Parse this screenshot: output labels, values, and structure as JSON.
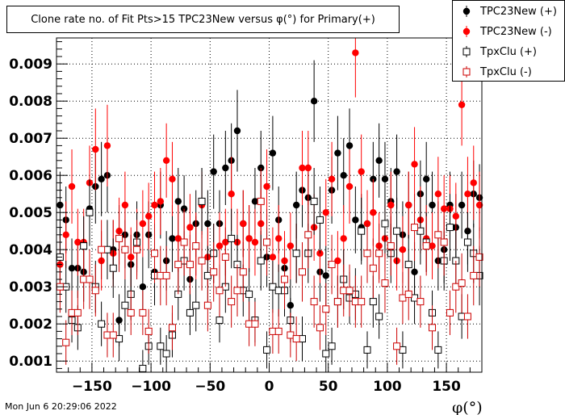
{
  "title": "Clone rate no. of Fit Pts>15 TPC23New versus φ(°) for Primary(+)",
  "timestamp": "Mon Jun  6 20:29:06 2022",
  "colors": {
    "black": "#000000",
    "red": "#ff0000",
    "open_red": "#cc0000",
    "grid": "#000000"
  },
  "legend": [
    {
      "label": "TPC23New (+)",
      "marker": "filled-circle",
      "color": "#000000"
    },
    {
      "label": "TPC23New (-)",
      "marker": "filled-circle",
      "color": "#ff0000"
    },
    {
      "label": "TpxClu (+)",
      "marker": "open-square",
      "color": "#000000"
    },
    {
      "label": "TpxClu (-)",
      "marker": "open-square",
      "color": "#cc0000"
    }
  ],
  "chart_data": {
    "type": "scatter",
    "title": "Clone rate no. of Fit Pts>15 TPC23New versus φ(°) for Primary(+)",
    "xlabel": "φ(°)",
    "ylabel": "",
    "xlim": [
      -180,
      180
    ],
    "ylim": [
      0.0007,
      0.0097
    ],
    "xticks": [
      -150,
      -100,
      -50,
      0,
      50,
      100,
      150
    ],
    "xtick_labels": [
      "−150",
      "−100",
      "−50",
      "0",
      "50",
      "100",
      "150"
    ],
    "yticks": [
      0.001,
      0.002,
      0.003,
      0.004,
      0.005,
      0.006,
      0.007,
      0.008,
      0.009
    ],
    "ytick_labels": [
      "0.001",
      "0.002",
      "0.003",
      "0.004",
      "0.005",
      "0.006",
      "0.007",
      "0.008",
      "0.009"
    ],
    "grid": true,
    "legend_position": "top-right",
    "series": [
      {
        "name": "TPC23New (+)",
        "marker": "filled-circle",
        "color": "#000000",
        "x": [
          -177,
          -172,
          -167,
          -162,
          -157,
          -152,
          -147,
          -142,
          -137,
          -132,
          -127,
          -122,
          -117,
          -112,
          -107,
          -102,
          -97,
          -92,
          -87,
          -82,
          -77,
          -72,
          -67,
          -62,
          -57,
          -52,
          -47,
          -42,
          -37,
          -32,
          -27,
          -22,
          -17,
          -12,
          -7,
          -2,
          3,
          8,
          13,
          18,
          23,
          28,
          33,
          38,
          43,
          48,
          53,
          58,
          63,
          68,
          73,
          78,
          83,
          88,
          93,
          98,
          103,
          108,
          113,
          118,
          123,
          128,
          133,
          138,
          143,
          148,
          153,
          158,
          163,
          168,
          173,
          178
        ],
        "y": [
          0.0052,
          0.0048,
          0.0035,
          0.0035,
          0.0034,
          0.0051,
          0.0057,
          0.0059,
          0.006,
          0.004,
          0.0021,
          0.0044,
          0.0036,
          0.0044,
          0.003,
          0.0044,
          0.0034,
          0.0052,
          0.0037,
          0.0043,
          0.0053,
          0.0051,
          0.0032,
          0.0047,
          0.0053,
          0.0047,
          0.0061,
          0.0047,
          0.0062,
          0.0064,
          0.0072,
          0.0047,
          0.0043,
          0.0053,
          0.0062,
          0.0038,
          0.0066,
          0.0048,
          0.0035,
          0.0025,
          0.0052,
          0.0056,
          0.0054,
          0.008,
          0.0034,
          0.0033,
          0.0056,
          0.0066,
          0.006,
          0.0068,
          0.0048,
          0.0046,
          0.0047,
          0.0059,
          0.0064,
          0.0059,
          0.0053,
          0.0061,
          0.0044,
          0.0052,
          0.0034,
          0.0055,
          0.0059,
          0.0052,
          0.0037,
          0.004,
          0.0052,
          0.0046,
          0.0052,
          0.0045,
          0.0055,
          0.0054
        ],
        "err": [
          0.0009,
          0.0009,
          0.0008,
          0.0008,
          0.0008,
          0.0009,
          0.001,
          0.001,
          0.001,
          0.0008,
          0.0007,
          0.0009,
          0.0008,
          0.0009,
          0.0008,
          0.0009,
          0.0008,
          0.0009,
          0.0008,
          0.0009,
          0.0009,
          0.0009,
          0.0008,
          0.0009,
          0.0009,
          0.0009,
          0.001,
          0.0009,
          0.001,
          0.001,
          0.0011,
          0.0009,
          0.0009,
          0.0009,
          0.001,
          0.0008,
          0.001,
          0.0009,
          0.0008,
          0.0007,
          0.0009,
          0.001,
          0.0009,
          0.0011,
          0.0008,
          0.0008,
          0.0009,
          0.001,
          0.001,
          0.001,
          0.0009,
          0.0009,
          0.0009,
          0.001,
          0.001,
          0.001,
          0.0009,
          0.001,
          0.0009,
          0.0009,
          0.0008,
          0.0009,
          0.001,
          0.0009,
          0.0008,
          0.0009,
          0.0009,
          0.0009,
          0.0009,
          0.0009,
          0.0009,
          0.0009
        ]
      },
      {
        "name": "TPC23New (-)",
        "marker": "filled-circle",
        "color": "#ff0000",
        "x": [
          -177,
          -172,
          -167,
          -162,
          -157,
          -152,
          -147,
          -142,
          -137,
          -132,
          -127,
          -122,
          -117,
          -112,
          -107,
          -102,
          -97,
          -92,
          -87,
          -82,
          -77,
          -72,
          -67,
          -62,
          -57,
          -52,
          -47,
          -42,
          -37,
          -32,
          -27,
          -22,
          -17,
          -12,
          -7,
          -2,
          3,
          8,
          13,
          18,
          23,
          28,
          33,
          38,
          43,
          48,
          53,
          58,
          63,
          68,
          73,
          78,
          83,
          88,
          93,
          98,
          103,
          108,
          113,
          118,
          123,
          128,
          133,
          138,
          143,
          148,
          153,
          158,
          163,
          168,
          173,
          178
        ],
        "y": [
          0.0036,
          0.0044,
          0.0057,
          0.0042,
          0.0042,
          0.0058,
          0.0067,
          0.0037,
          0.0068,
          0.0039,
          0.0045,
          0.0052,
          0.0038,
          0.0042,
          0.0047,
          0.0049,
          0.0052,
          0.0053,
          0.0064,
          0.0059,
          0.0043,
          0.0042,
          0.0046,
          0.0041,
          0.0052,
          0.0038,
          0.0039,
          0.0041,
          0.0042,
          0.0055,
          0.0042,
          0.0047,
          0.0043,
          0.0042,
          0.0047,
          0.0057,
          0.0038,
          0.0043,
          0.0037,
          0.0041,
          0.0039,
          0.0062,
          0.0062,
          0.0046,
          0.0039,
          0.005,
          0.0059,
          0.0037,
          0.0043,
          0.0057,
          0.0093,
          0.0061,
          0.0047,
          0.005,
          0.0041,
          0.0043,
          0.0052,
          0.0037,
          0.004,
          0.0052,
          0.0063,
          0.0048,
          0.0043,
          0.0041,
          0.0055,
          0.0051,
          0.0051,
          0.0049,
          0.0079,
          0.0055,
          0.0058,
          0.0052
        ],
        "err": [
          0.0008,
          0.0009,
          0.001,
          0.0009,
          0.0009,
          0.001,
          0.0011,
          0.0008,
          0.0011,
          0.0009,
          0.0009,
          0.0009,
          0.0008,
          0.0009,
          0.0009,
          0.0009,
          0.0009,
          0.0009,
          0.001,
          0.001,
          0.0009,
          0.0009,
          0.0009,
          0.0009,
          0.0009,
          0.0008,
          0.0008,
          0.0009,
          0.0009,
          0.001,
          0.0009,
          0.0009,
          0.0009,
          0.0009,
          0.0009,
          0.001,
          0.0008,
          0.0009,
          0.0008,
          0.0009,
          0.0008,
          0.001,
          0.001,
          0.0009,
          0.0008,
          0.0009,
          0.001,
          0.0008,
          0.0009,
          0.001,
          0.0012,
          0.001,
          0.0009,
          0.0009,
          0.0009,
          0.0009,
          0.0009,
          0.0008,
          0.0009,
          0.0009,
          0.001,
          0.0009,
          0.0009,
          0.0009,
          0.001,
          0.0009,
          0.0009,
          0.0009,
          0.0011,
          0.001,
          0.001,
          0.0009
        ]
      },
      {
        "name": "TpxClu (+)",
        "marker": "open-square",
        "color": "#000000",
        "x": [
          -177,
          -172,
          -167,
          -162,
          -157,
          -152,
          -147,
          -142,
          -137,
          -132,
          -127,
          -122,
          -117,
          -112,
          -107,
          -102,
          -97,
          -92,
          -87,
          -82,
          -77,
          -72,
          -67,
          -62,
          -57,
          -52,
          -47,
          -42,
          -37,
          -32,
          -27,
          -22,
          -17,
          -12,
          -7,
          -2,
          3,
          8,
          13,
          18,
          23,
          28,
          33,
          38,
          43,
          48,
          53,
          58,
          63,
          68,
          73,
          78,
          83,
          88,
          93,
          98,
          103,
          108,
          113,
          118,
          123,
          128,
          133,
          138,
          143,
          148,
          153,
          158,
          163,
          168,
          173,
          178
        ],
        "y": [
          0.0038,
          0.003,
          0.0021,
          0.0019,
          0.0041,
          0.005,
          0.003,
          0.002,
          0.004,
          0.0035,
          0.0016,
          0.0025,
          0.0028,
          0.0042,
          0.0008,
          0.0014,
          0.0033,
          0.0014,
          0.0012,
          0.0017,
          0.0028,
          0.0037,
          0.0023,
          0.0025,
          0.0053,
          0.0033,
          0.0039,
          0.0021,
          0.003,
          0.0043,
          0.0036,
          0.0029,
          0.0028,
          0.0021,
          0.0037,
          0.0013,
          0.003,
          0.0029,
          0.0029,
          0.0021,
          0.0039,
          0.0016,
          0.0039,
          0.0053,
          0.0048,
          0.0012,
          0.0014,
          0.0026,
          0.0032,
          0.0027,
          0.0028,
          0.0045,
          0.0013,
          0.0026,
          0.0022,
          0.0047,
          0.0039,
          0.0045,
          0.0013,
          0.0036,
          0.0027,
          0.0045,
          0.0042,
          0.0023,
          0.0013,
          0.0037,
          0.0046,
          0.0037,
          0.0022,
          0.0042,
          0.0039,
          0.0033
        ],
        "err": [
          0.0008,
          0.0007,
          0.0006,
          0.0006,
          0.0008,
          0.0009,
          0.0007,
          0.0006,
          0.0008,
          0.0008,
          0.0006,
          0.0007,
          0.0007,
          0.0008,
          0.0005,
          0.0005,
          0.0008,
          0.0005,
          0.0005,
          0.0006,
          0.0007,
          0.0008,
          0.0006,
          0.0007,
          0.0009,
          0.0008,
          0.0008,
          0.0006,
          0.0007,
          0.0008,
          0.0008,
          0.0007,
          0.0007,
          0.0006,
          0.0008,
          0.0005,
          0.0007,
          0.0007,
          0.0007,
          0.0006,
          0.0008,
          0.0006,
          0.0008,
          0.0009,
          0.0009,
          0.0005,
          0.0005,
          0.0007,
          0.0008,
          0.0007,
          0.0007,
          0.0009,
          0.0005,
          0.0007,
          0.0006,
          0.0009,
          0.0008,
          0.0009,
          0.0005,
          0.0008,
          0.0007,
          0.0009,
          0.0008,
          0.0006,
          0.0005,
          0.0008,
          0.0009,
          0.0008,
          0.0006,
          0.0008,
          0.0008,
          0.0008
        ]
      },
      {
        "name": "TpxClu (-)",
        "marker": "open-square",
        "color": "#cc0000",
        "x": [
          -177,
          -172,
          -167,
          -162,
          -157,
          -152,
          -147,
          -142,
          -137,
          -132,
          -127,
          -122,
          -117,
          -112,
          -107,
          -102,
          -97,
          -92,
          -87,
          -82,
          -77,
          -72,
          -67,
          -62,
          -57,
          -52,
          -47,
          -42,
          -37,
          -32,
          -27,
          -22,
          -17,
          -12,
          -7,
          -2,
          3,
          8,
          13,
          18,
          23,
          28,
          33,
          38,
          43,
          48,
          53,
          58,
          63,
          68,
          73,
          78,
          83,
          88,
          93,
          98,
          103,
          108,
          113,
          118,
          123,
          128,
          133,
          138,
          143,
          148,
          153,
          158,
          163,
          168,
          173,
          178
        ],
        "y": [
          0.003,
          0.0015,
          0.0023,
          0.0023,
          0.0032,
          0.0032,
          0.0029,
          0.004,
          0.0017,
          0.0017,
          0.0043,
          0.004,
          0.0023,
          0.004,
          0.0023,
          0.0018,
          0.0039,
          0.0033,
          0.0033,
          0.0019,
          0.0036,
          0.0042,
          0.0036,
          0.0041,
          0.0037,
          0.0025,
          0.0034,
          0.0029,
          0.0038,
          0.0026,
          0.0029,
          0.0034,
          0.002,
          0.002,
          0.0053,
          0.0042,
          0.0018,
          0.0018,
          0.0032,
          0.0017,
          0.0016,
          0.0034,
          0.0044,
          0.0026,
          0.0019,
          0.0024,
          0.0036,
          0.0026,
          0.0029,
          0.0029,
          0.0026,
          0.0026,
          0.0039,
          0.0035,
          0.0039,
          0.0031,
          0.0041,
          0.0014,
          0.0027,
          0.0028,
          0.0046,
          0.0026,
          0.0041,
          0.0019,
          0.0044,
          0.0042,
          0.0023,
          0.003,
          0.0031,
          0.0022,
          0.0033,
          0.0038
        ],
        "err": [
          0.0007,
          0.0006,
          0.0006,
          0.0006,
          0.0008,
          0.0008,
          0.0007,
          0.0008,
          0.0006,
          0.0006,
          0.0009,
          0.0008,
          0.0006,
          0.0008,
          0.0006,
          0.0006,
          0.0008,
          0.0008,
          0.0008,
          0.0006,
          0.0008,
          0.0009,
          0.0008,
          0.0008,
          0.0008,
          0.0007,
          0.0008,
          0.0007,
          0.0008,
          0.0007,
          0.0007,
          0.0008,
          0.0006,
          0.0006,
          0.0009,
          0.0009,
          0.0006,
          0.0006,
          0.0008,
          0.0006,
          0.0006,
          0.0008,
          0.0009,
          0.0007,
          0.0006,
          0.0007,
          0.0008,
          0.0007,
          0.0007,
          0.0007,
          0.0007,
          0.0007,
          0.0008,
          0.0008,
          0.0008,
          0.0008,
          0.0008,
          0.0005,
          0.0007,
          0.0007,
          0.0009,
          0.0007,
          0.0008,
          0.0006,
          0.0009,
          0.0009,
          0.0006,
          0.0007,
          0.0008,
          0.0006,
          0.0008,
          0.0008
        ]
      }
    ]
  }
}
